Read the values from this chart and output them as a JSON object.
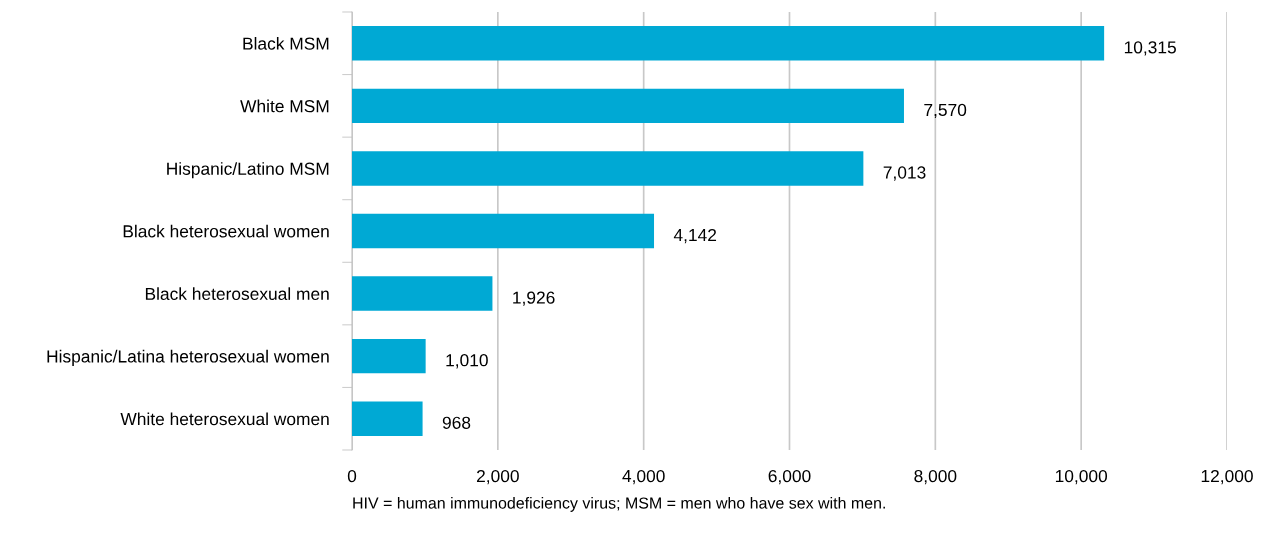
{
  "chart_data": {
    "type": "bar",
    "orientation": "horizontal",
    "categories": [
      "Black MSM",
      "White MSM",
      "Hispanic/Latino MSM",
      "Black heterosexual women",
      "Black heterosexual men",
      "Hispanic/Latina heterosexual women",
      "White heterosexual women"
    ],
    "values": [
      10315,
      7570,
      7013,
      4142,
      1926,
      1010,
      968
    ],
    "value_labels": [
      "10,315",
      "7,570",
      "7,013",
      "4,142",
      "1,926",
      "1,010",
      "968"
    ],
    "color": "#00a9d4",
    "xlim": [
      0,
      12000
    ],
    "xticks": [
      {
        "value": 0,
        "label": "0"
      },
      {
        "value": 2000,
        "label": "2,000"
      },
      {
        "value": 4000,
        "label": "4,000"
      },
      {
        "value": 6000,
        "label": "6,000"
      },
      {
        "value": 8000,
        "label": "8,000"
      },
      {
        "value": 10000,
        "label": "10,000"
      },
      {
        "value": 12000,
        "label": "12,000"
      }
    ],
    "grid": "x",
    "annotations": [
      "HIV = human immunodeficiency virus; MSM = men who have sex with men."
    ]
  }
}
